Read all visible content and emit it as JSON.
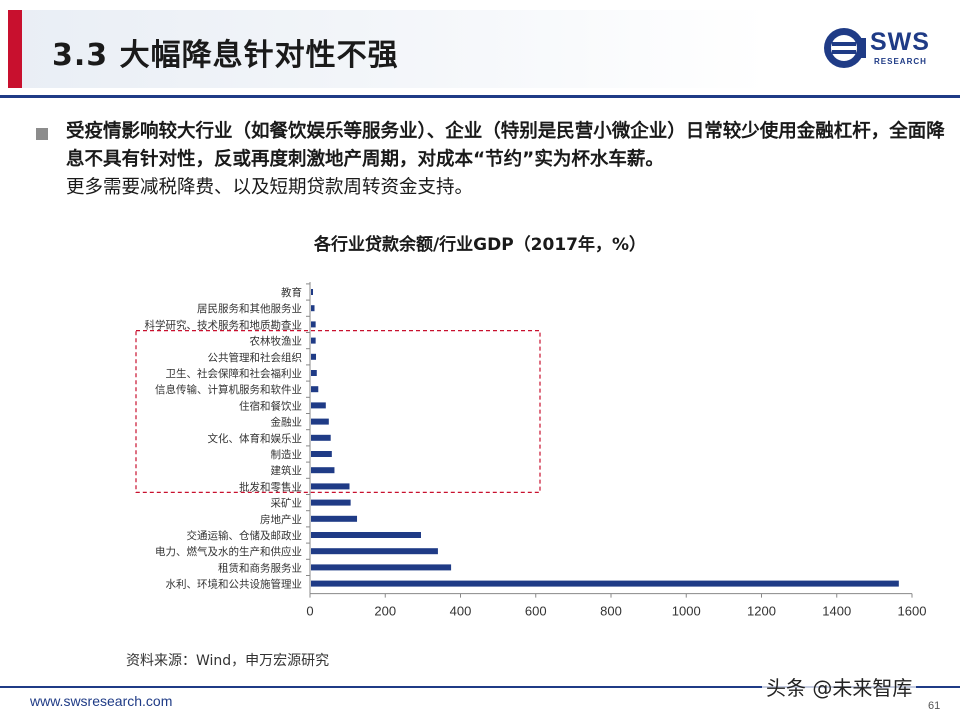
{
  "header": {
    "title": "3.3 大幅降息针对性不强",
    "logo_text": "SWS",
    "logo_sub": "RESEARCH"
  },
  "bullet": {
    "bold_text": "受疫情影响较大行业（如餐饮娱乐等服务业）、企业（特别是民营小微企业）日常较少使用金融杠杆，全面降息不具有针对性，反或再度刺激地产周期，对成本“节约”实为杯水车薪。",
    "normal_text": "更多需要减税降费、以及短期贷款周转资金支持。"
  },
  "chart_data": {
    "type": "bar",
    "orientation": "horizontal",
    "title": "各行业贷款余额/行业GDP（2017年，%）",
    "categories": [
      "教育",
      "居民服务和其他服务业",
      "科学研究、技术服务和地质勘查业",
      "农林牧渔业",
      "公共管理和社会组织",
      "卫生、社会保障和社会福利业",
      "信息传输、计算机服务和软件业",
      "住宿和餐饮业",
      "金融业",
      "文化、体育和娱乐业",
      "制造业",
      "建筑业",
      "批发和零售业",
      "采矿业",
      "房地产业",
      "交通运输、仓储及邮政业",
      "电力、燃气及水的生产和供应业",
      "租赁和商务服务业",
      "水利、环境和公共设施管理业"
    ],
    "values": [
      8,
      12,
      15,
      15,
      16,
      18,
      22,
      42,
      50,
      55,
      58,
      65,
      105,
      108,
      125,
      295,
      340,
      375,
      1565
    ],
    "xlim": [
      0,
      1600
    ],
    "xticks": [
      0,
      200,
      400,
      600,
      800,
      1000,
      1200,
      1400,
      1600
    ],
    "grid": false,
    "bar_color": "#1f3b86",
    "highlight_box": {
      "from_category": "农林牧渔业",
      "to_category": "批发和零售业",
      "color": "#c8102e"
    }
  },
  "source": "资料来源：Wind，申万宏源研究",
  "footer": {
    "url": "www.swsresearch.com",
    "page_number": "61",
    "watermark": "头条 @未来智库"
  }
}
